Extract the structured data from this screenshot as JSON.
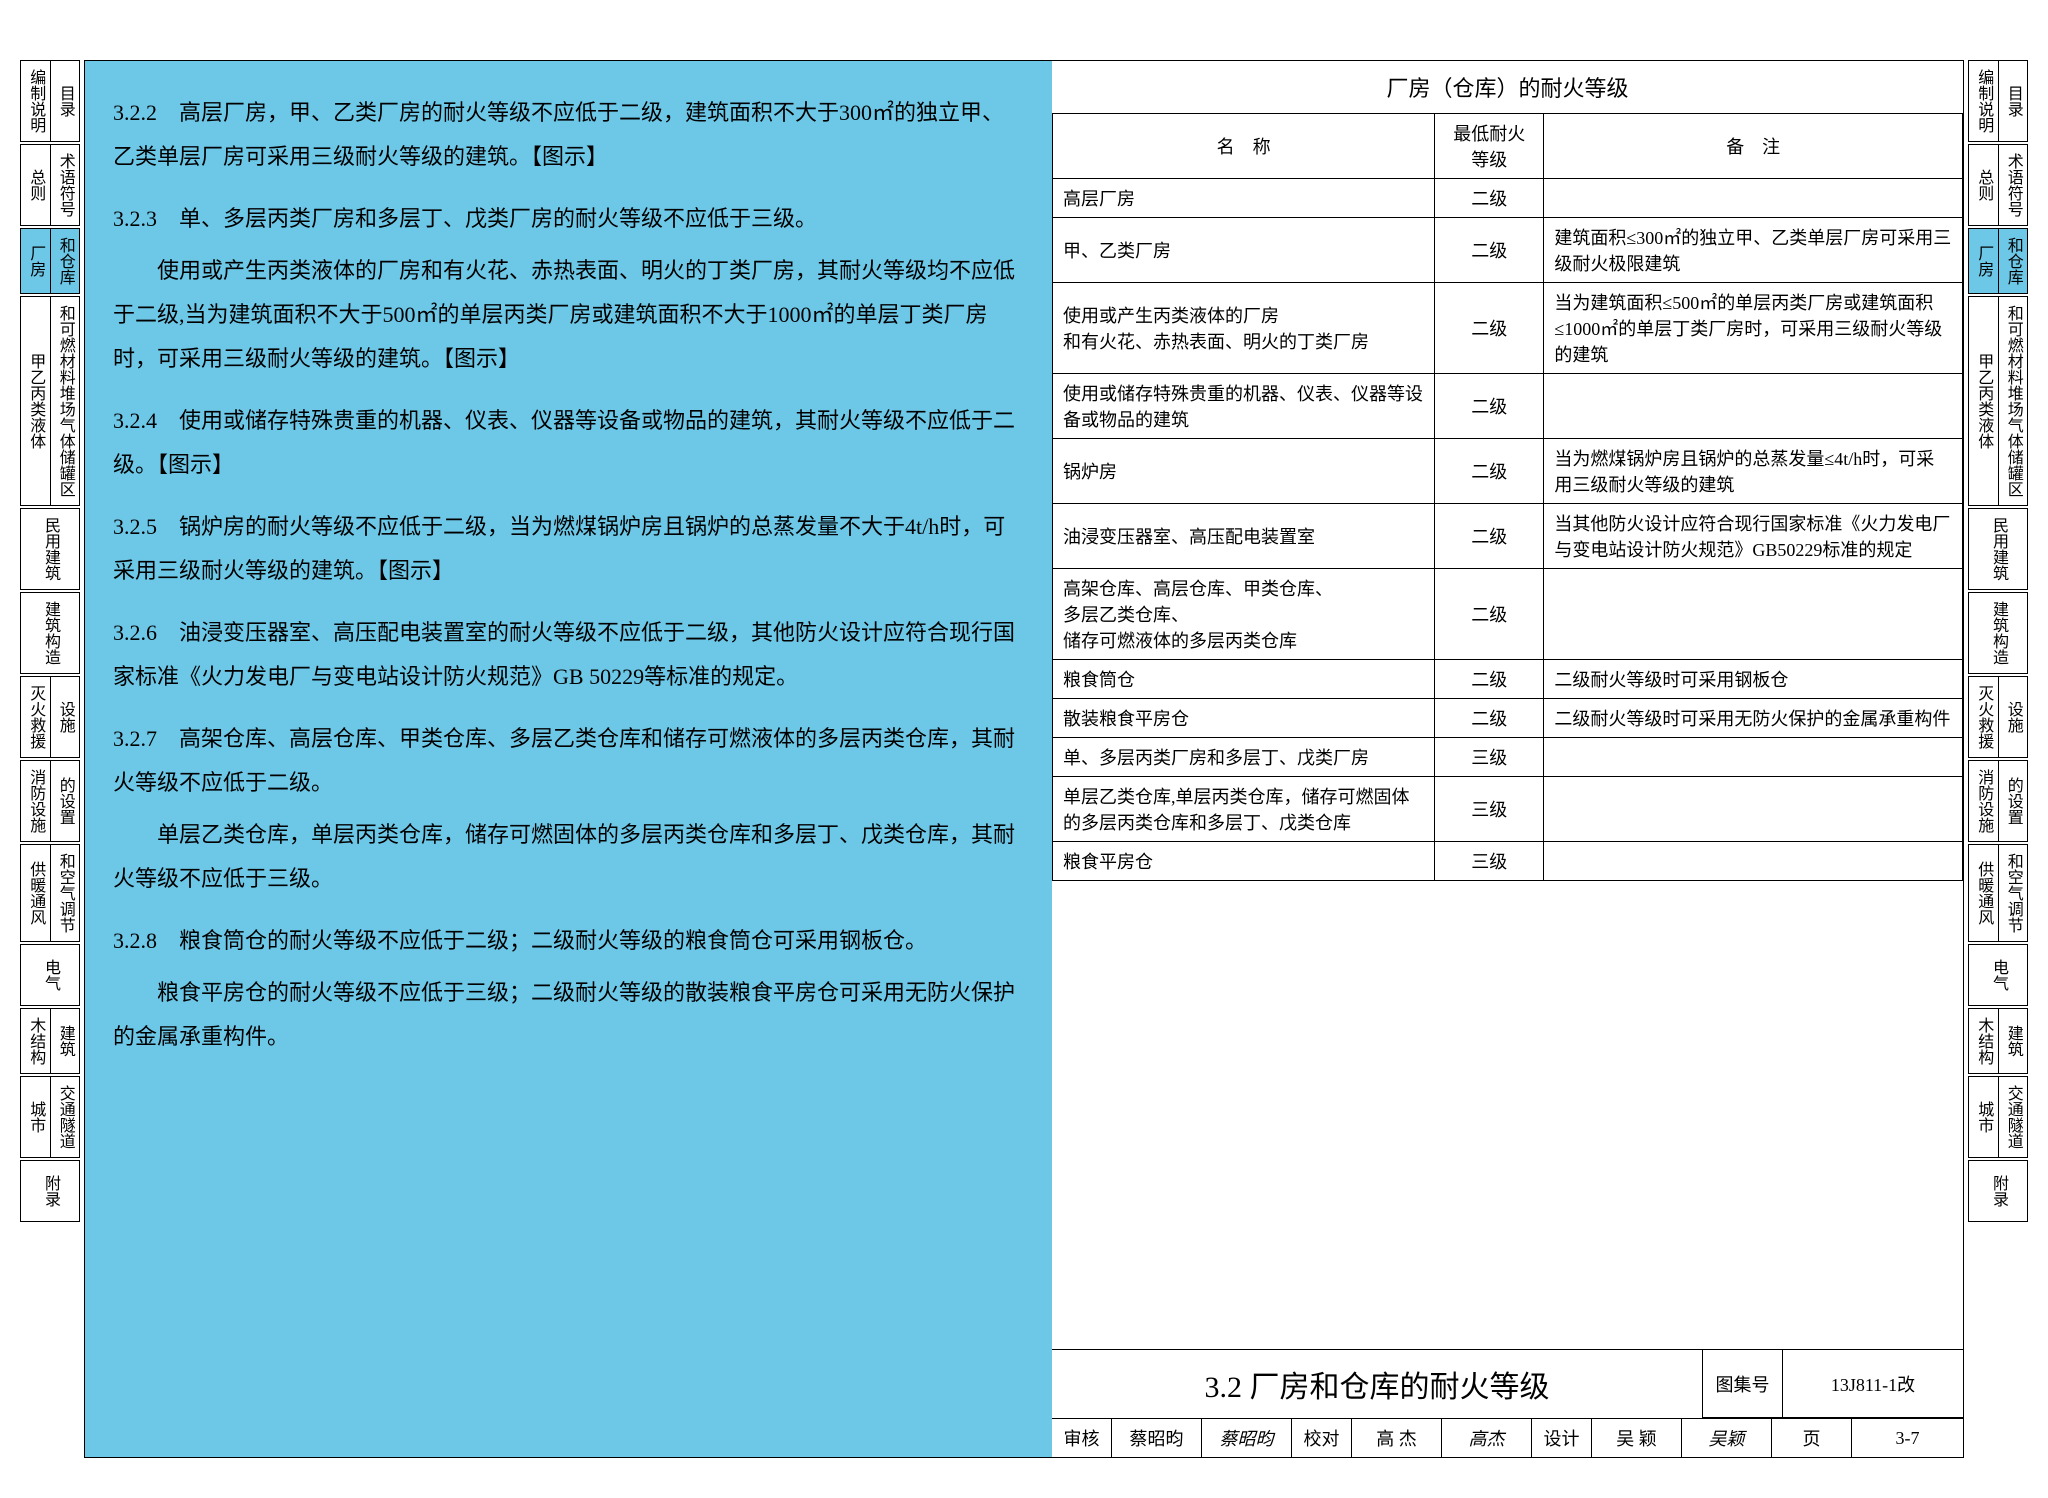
{
  "nav": {
    "rows": [
      {
        "a": "编制说明",
        "b": "目录"
      },
      {
        "a": "总则",
        "b": "术语符号"
      },
      {
        "a": "厂房",
        "b": "和仓库",
        "highlight": true
      },
      {
        "a": "甲乙丙类液体",
        "b": "和可燃材料堆场气体储罐区"
      },
      {
        "a": "民用建筑",
        "b": ""
      },
      {
        "a": "建筑构造",
        "b": ""
      },
      {
        "a": "灭火救援",
        "b": "设施"
      },
      {
        "a": "消防设施",
        "b": "的设置"
      },
      {
        "a": "供暖通风",
        "b": "和空气调节"
      },
      {
        "a": "电气",
        "b": ""
      },
      {
        "a": "木结构",
        "b": "建筑"
      },
      {
        "a": "城市",
        "b": "交通隧道"
      },
      {
        "a": "附录",
        "b": ""
      }
    ]
  },
  "clauses": [
    {
      "num": "3.2.2",
      "text": "高层厂房，甲、乙类厂房的耐火等级不应低于二级，建筑面积不大于300㎡的独立甲、乙类单层厂房可采用三级耐火等级的建筑。【图示】"
    },
    {
      "num": "3.2.3",
      "text": "单、多层丙类厂房和多层丁、戊类厂房的耐火等级不应低于三级。",
      "cont": "使用或产生丙类液体的厂房和有火花、赤热表面、明火的丁类厂房，其耐火等级均不应低于二级,当为建筑面积不大于500㎡的单层丙类厂房或建筑面积不大于1000㎡的单层丁类厂房时，可采用三级耐火等级的建筑。【图示】"
    },
    {
      "num": "3.2.4",
      "text": "使用或储存特殊贵重的机器、仪表、仪器等设备或物品的建筑，其耐火等级不应低于二级。【图示】"
    },
    {
      "num": "3.2.5",
      "text": "锅炉房的耐火等级不应低于二级，当为燃煤锅炉房且锅炉的总蒸发量不大于4t/h时，可采用三级耐火等级的建筑。【图示】"
    },
    {
      "num": "3.2.6",
      "text": "油浸变压器室、高压配电装置室的耐火等级不应低于二级，其他防火设计应符合现行国家标准《火力发电厂与变电站设计防火规范》GB 50229等标准的规定。"
    },
    {
      "num": "3.2.7",
      "text": "高架仓库、高层仓库、甲类仓库、多层乙类仓库和储存可燃液体的多层丙类仓库，其耐火等级不应低于二级。",
      "cont": "单层乙类仓库，单层丙类仓库，储存可燃固体的多层丙类仓库和多层丁、戊类仓库，其耐火等级不应低于三级。"
    },
    {
      "num": "3.2.8",
      "text": "粮食筒仓的耐火等级不应低于二级；二级耐火等级的粮食筒仓可采用钢板仓。",
      "cont": "粮食平房仓的耐火等级不应低于三级；二级耐火等级的散装粮食平房仓可采用无防火保护的金属承重构件。"
    }
  ],
  "table": {
    "title": "厂房（仓库）的耐火等级",
    "headers": {
      "name": "名　称",
      "level": "最低耐火等级",
      "note": "备　注"
    },
    "rows": [
      {
        "name": "高层厂房",
        "level": "二级",
        "note": ""
      },
      {
        "name": "甲、乙类厂房",
        "level": "二级",
        "note": "建筑面积≤300㎡的独立甲、乙类单层厂房可采用三级耐火极限建筑"
      },
      {
        "name": "使用或产生丙类液体的厂房\n和有火花、赤热表面、明火的丁类厂房",
        "level": "二级",
        "note": "当为建筑面积≤500㎡的单层丙类厂房或建筑面积≤1000㎡的单层丁类厂房时，可采用三级耐火等级的建筑"
      },
      {
        "name": "使用或储存特殊贵重的机器、仪表、仪器等设备或物品的建筑",
        "level": "二级",
        "note": ""
      },
      {
        "name": "锅炉房",
        "level": "二级",
        "note": "当为燃煤锅炉房且锅炉的总蒸发量≤4t/h时，可采用三级耐火等级的建筑"
      },
      {
        "name": "油浸变压器室、高压配电装置室",
        "level": "二级",
        "note": "当其他防火设计应符合现行国家标准《火力发电厂与变电站设计防火规范》GB50229标准的规定"
      },
      {
        "name": "高架仓库、高层仓库、甲类仓库、\n多层乙类仓库、\n储存可燃液体的多层丙类仓库",
        "level": "二级",
        "note": ""
      },
      {
        "name": "粮食筒仓",
        "level": "二级",
        "note": "二级耐火等级时可采用钢板仓"
      },
      {
        "name": "散装粮食平房仓",
        "level": "二级",
        "note": "二级耐火等级时可采用无防火保护的金属承重构件"
      },
      {
        "name": "单、多层丙类厂房和多层丁、戊类厂房",
        "level": "三级",
        "note": ""
      },
      {
        "name": "单层乙类仓库,单层丙类仓库，储存可燃固体的多层丙类仓库和多层丁、戊类仓库",
        "level": "三级",
        "note": ""
      },
      {
        "name": "粮食平房仓",
        "level": "三级",
        "note": ""
      }
    ]
  },
  "footer": {
    "title": "3.2 厂房和仓库的耐火等级",
    "atlas_label": "图集号",
    "atlas_val": "13J811-1改",
    "page_label": "页",
    "page_val": "3-7",
    "approvals": [
      {
        "label": "审核",
        "name": "蔡昭昀",
        "sig": "蔡昭昀"
      },
      {
        "label": "校对",
        "name": "高 杰",
        "sig": "高杰"
      },
      {
        "label": "设计",
        "name": "吴 颖",
        "sig": "吴颖"
      }
    ]
  }
}
